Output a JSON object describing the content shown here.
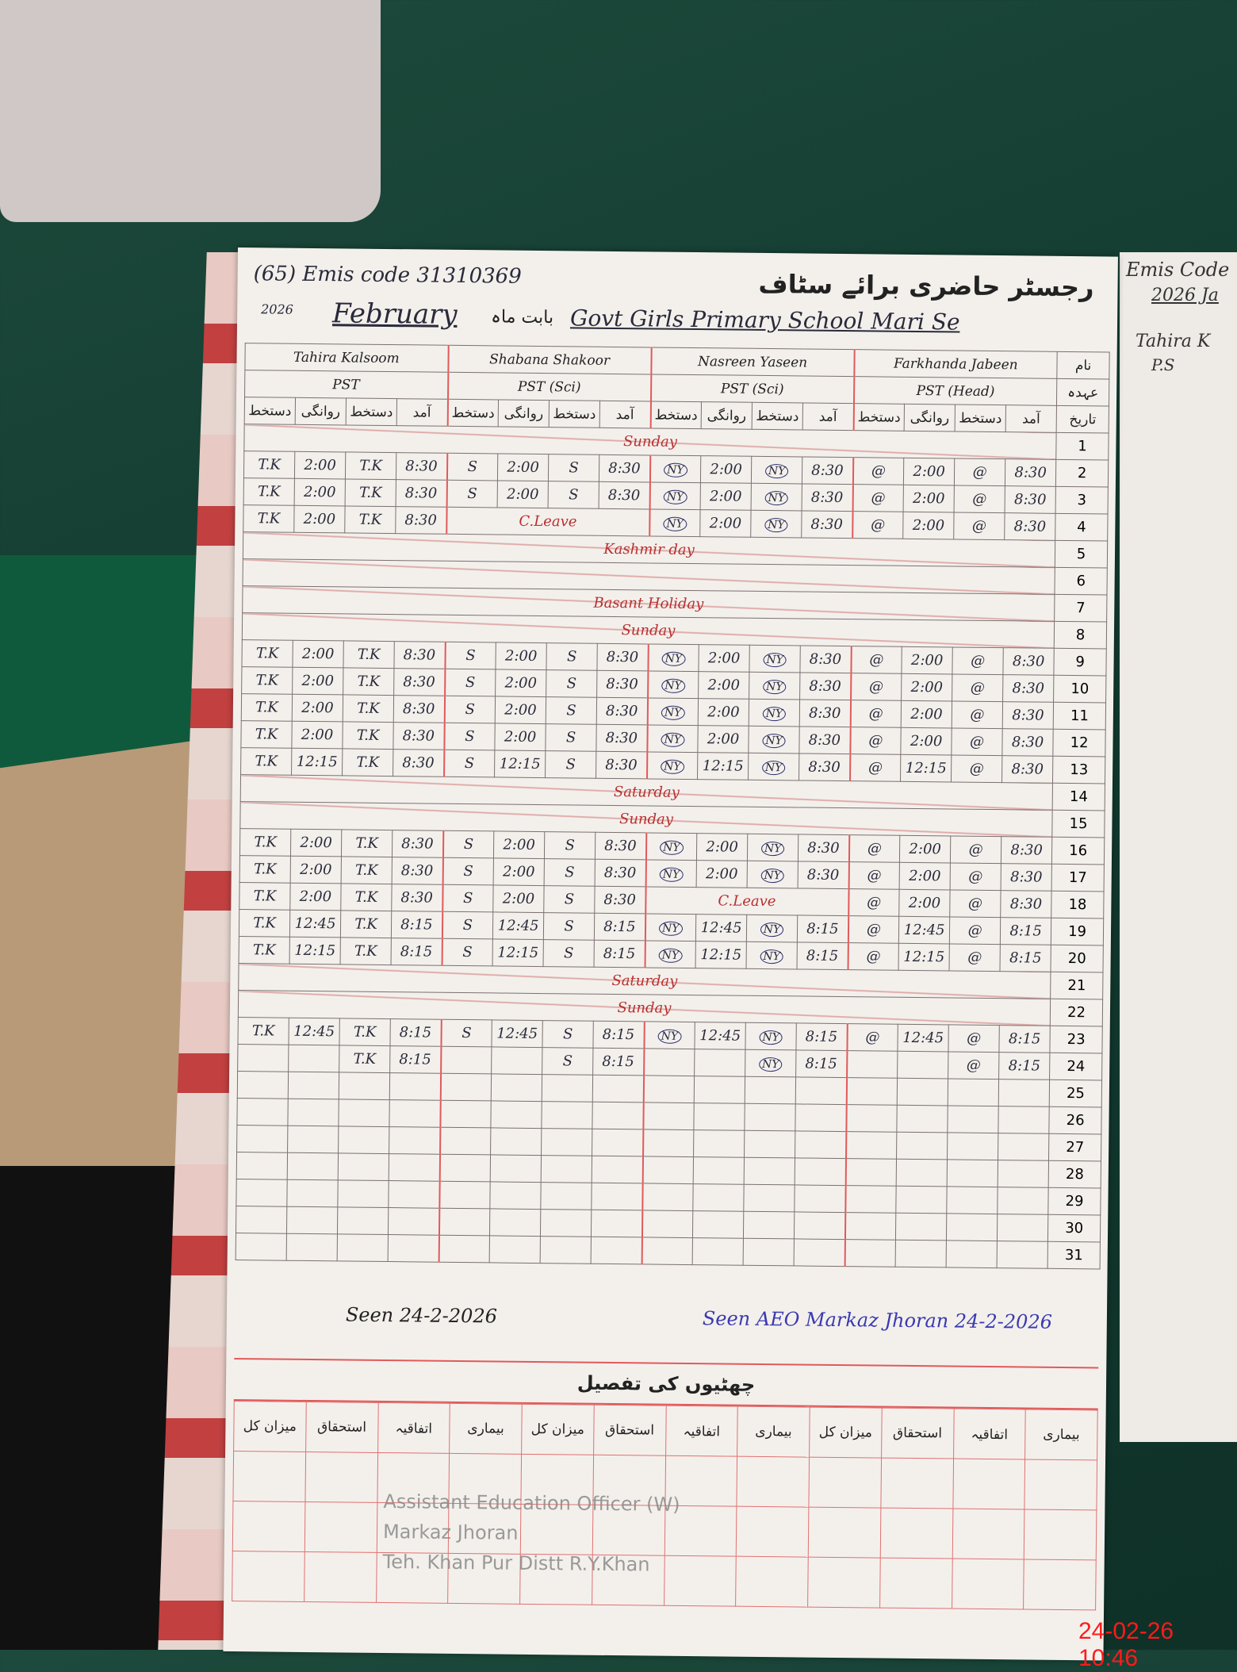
{
  "header": {
    "page_number": "65",
    "emis_label": "Emis code",
    "emis_code": "31310369",
    "register_title_urdu": "رجسٹر حاضری برائے سٹاف",
    "school": "Govt Girls Primary School Mari Se",
    "month_label_urdu": "بابت ماہ",
    "month": "February",
    "year": "2026",
    "row_labels": {
      "name": "نام",
      "designation": "عہدہ",
      "date": "تاریخ"
    }
  },
  "column_labels": {
    "signature": "دستخط",
    "departure": "روانگی",
    "arrival": "آمد"
  },
  "teachers": [
    {
      "name": "Tahira Kalsoom",
      "designation": "PST",
      "mark": "T.K"
    },
    {
      "name": "Shabana Shakoor",
      "designation": "PST (Sci)",
      "mark": "S"
    },
    {
      "name": "Nasreen Yaseen",
      "designation": "PST (Sci)",
      "mark": "NY"
    },
    {
      "name": "Farkhanda Jabeen",
      "designation": "PST (Head)",
      "mark": "@"
    }
  ],
  "rows": [
    {
      "date": "1",
      "note": "Sunday"
    },
    {
      "date": "2",
      "entries": [
        [
          "2:00",
          "8:30"
        ],
        [
          "2:00",
          "8:30"
        ],
        [
          "2:00",
          "8:30"
        ],
        [
          "2:00",
          "8:30"
        ]
      ]
    },
    {
      "date": "3",
      "entries": [
        [
          "2:00",
          "8:30"
        ],
        [
          "2:00",
          "8:30"
        ],
        [
          "2:00",
          "8:30"
        ],
        [
          "2:00",
          "8:30"
        ]
      ]
    },
    {
      "date": "4",
      "entries": [
        [
          "2:00",
          "8:30"
        ],
        null,
        [
          "2:00",
          "8:30"
        ],
        [
          "2:00",
          "8:30"
        ]
      ],
      "leave": {
        "teacher": 1,
        "text": "C.Leave"
      }
    },
    {
      "date": "5",
      "note": "Kashmir day"
    },
    {
      "date": "6",
      "note": ""
    },
    {
      "date": "7",
      "note": "Basant Holiday"
    },
    {
      "date": "8",
      "note": "Sunday"
    },
    {
      "date": "9",
      "entries": [
        [
          "2:00",
          "8:30"
        ],
        [
          "2:00",
          "8:30"
        ],
        [
          "2:00",
          "8:30"
        ],
        [
          "2:00",
          "8:30"
        ]
      ]
    },
    {
      "date": "10",
      "entries": [
        [
          "2:00",
          "8:30"
        ],
        [
          "2:00",
          "8:30"
        ],
        [
          "2:00",
          "8:30"
        ],
        [
          "2:00",
          "8:30"
        ]
      ]
    },
    {
      "date": "11",
      "entries": [
        [
          "2:00",
          "8:30"
        ],
        [
          "2:00",
          "8:30"
        ],
        [
          "2:00",
          "8:30"
        ],
        [
          "2:00",
          "8:30"
        ]
      ]
    },
    {
      "date": "12",
      "entries": [
        [
          "2:00",
          "8:30"
        ],
        [
          "2:00",
          "8:30"
        ],
        [
          "2:00",
          "8:30"
        ],
        [
          "2:00",
          "8:30"
        ]
      ]
    },
    {
      "date": "13",
      "entries": [
        [
          "12:15",
          "8:30"
        ],
        [
          "12:15",
          "8:30"
        ],
        [
          "12:15",
          "8:30"
        ],
        [
          "12:15",
          "8:30"
        ]
      ]
    },
    {
      "date": "14",
      "note": "Saturday"
    },
    {
      "date": "15",
      "note": "Sunday"
    },
    {
      "date": "16",
      "entries": [
        [
          "2:00",
          "8:30"
        ],
        [
          "2:00",
          "8:30"
        ],
        [
          "2:00",
          "8:30"
        ],
        [
          "2:00",
          "8:30"
        ]
      ]
    },
    {
      "date": "17",
      "entries": [
        [
          "2:00",
          "8:30"
        ],
        [
          "2:00",
          "8:30"
        ],
        [
          "2:00",
          "8:30"
        ],
        [
          "2:00",
          "8:30"
        ]
      ]
    },
    {
      "date": "18",
      "entries": [
        [
          "2:00",
          "8:30"
        ],
        [
          "2:00",
          "8:30"
        ],
        null,
        [
          "2:00",
          "8:30"
        ]
      ],
      "leave": {
        "teacher": 2,
        "text": "C.Leave"
      }
    },
    {
      "date": "19",
      "entries": [
        [
          "12:45",
          "8:15"
        ],
        [
          "12:45",
          "8:15"
        ],
        [
          "12:45",
          "8:15"
        ],
        [
          "12:45",
          "8:15"
        ]
      ]
    },
    {
      "date": "20",
      "entries": [
        [
          "12:15",
          "8:15"
        ],
        [
          "12:15",
          "8:15"
        ],
        [
          "12:15",
          "8:15"
        ],
        [
          "12:15",
          "8:15"
        ]
      ]
    },
    {
      "date": "21",
      "note": "Saturday"
    },
    {
      "date": "22",
      "note": "Sunday"
    },
    {
      "date": "23",
      "entries": [
        [
          "12:45",
          "8:15"
        ],
        [
          "12:45",
          "8:15"
        ],
        [
          "12:45",
          "8:15"
        ],
        [
          "12:45",
          "8:15"
        ]
      ]
    },
    {
      "date": "24",
      "entries": [
        [
          "",
          "8:15"
        ],
        [
          "",
          "8:15"
        ],
        [
          "",
          "8:15"
        ],
        [
          "",
          "8:15"
        ]
      ]
    },
    {
      "date": "25"
    },
    {
      "date": "26"
    },
    {
      "date": "27"
    },
    {
      "date": "28"
    },
    {
      "date": "29"
    },
    {
      "date": "30"
    },
    {
      "date": "31"
    }
  ],
  "leave_section": {
    "title": "چھٹیوں کی تفصیل",
    "columns": [
      "میزان کل",
      "استحقاق",
      "اتفاقیہ",
      "بیماری",
      "میزان کل",
      "استحقاق",
      "اتفاقیہ",
      "بیماری",
      "میزان کل",
      "استحقاق",
      "اتفاقیہ",
      "بیماری"
    ]
  },
  "stamp": [
    "Assistant Education Officer (W)",
    "Markaz Jhoran",
    "Teh. Khan Pur Distt R.Y.Khan"
  ],
  "signatures": {
    "left": "Seen 24-2-2026",
    "right": "Seen AEO Markaz Jhoran 24-2-2026"
  },
  "right_page": {
    "emis": "Emis Code",
    "month": "2026 Ja",
    "name": "Tahira K",
    "designation": "P.S"
  },
  "photo_timestamp": "24-02-26 10:46",
  "colors": {
    "ink_blue": "#2a2a6a",
    "ink_red": "#b83030",
    "rule_red": "#e05a5a",
    "timestamp": "#ff1a1a"
  }
}
